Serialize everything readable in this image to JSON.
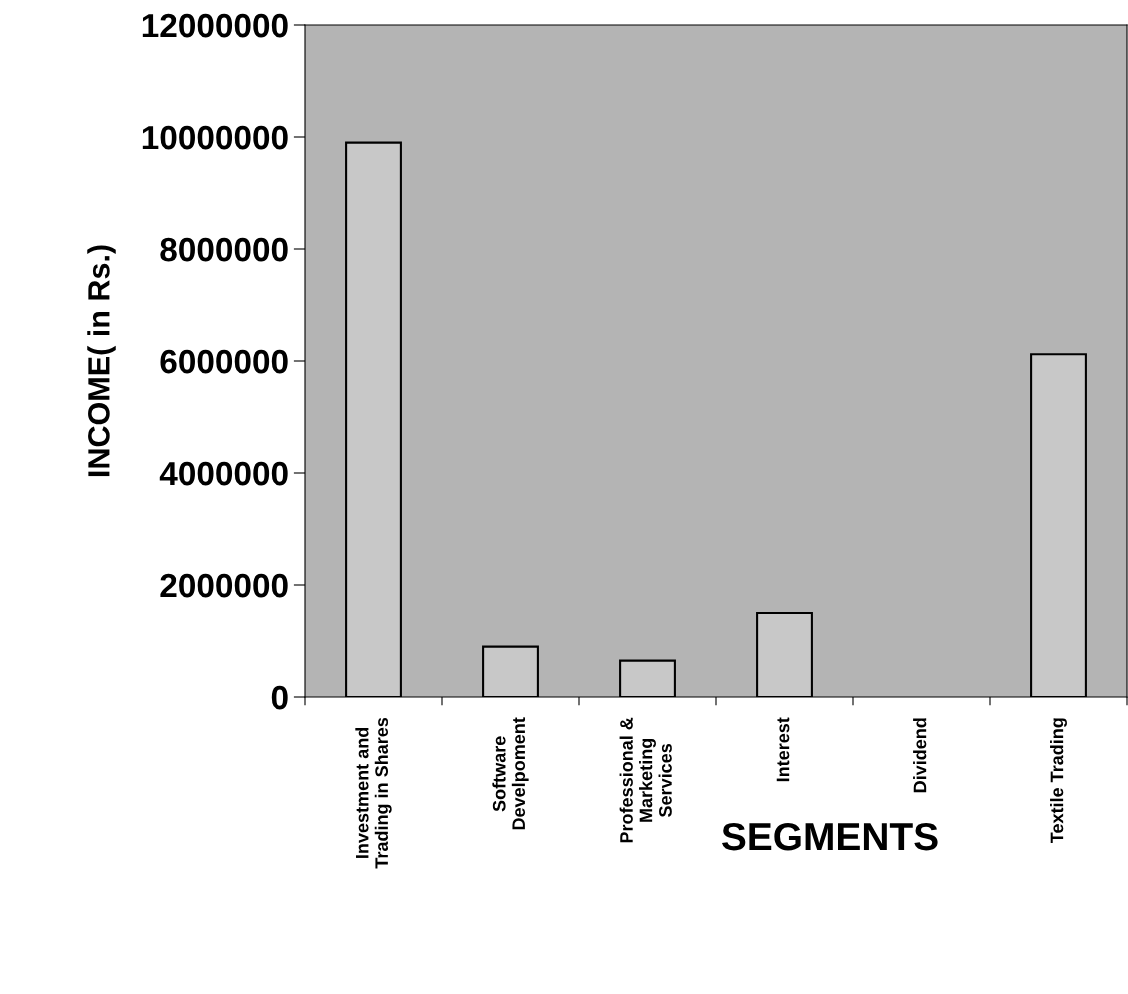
{
  "chart_data": {
    "type": "bar",
    "xlabel": "SEGMENTS",
    "ylabel": "INCOME( in Rs.)",
    "categories": [
      "Investment and\nTrading in Shares",
      "Software\nDevelpoment",
      "Professional &\nMarketing\nServices",
      "Interest",
      "Dividend",
      "Textile Trading"
    ],
    "values": [
      9900000,
      900000,
      650000,
      1500000,
      null,
      6120000
    ],
    "color": "#c8c8c8",
    "ylim": [
      0,
      12000000
    ],
    "yticks": [
      0,
      2000000,
      4000000,
      6000000,
      8000000,
      10000000,
      12000000
    ],
    "grid": false
  }
}
